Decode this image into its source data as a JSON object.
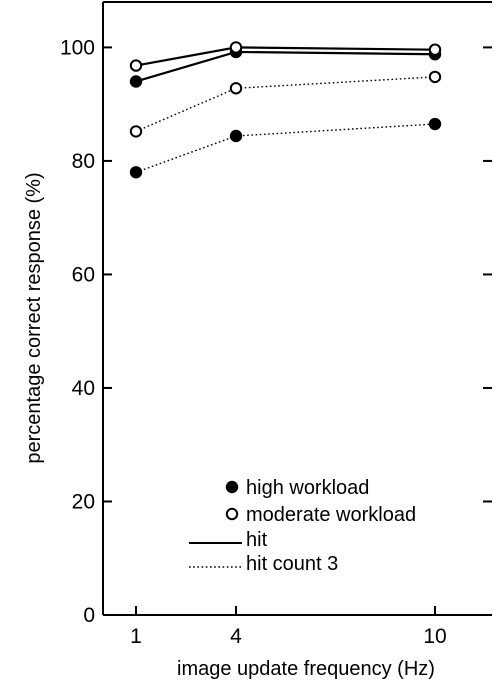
{
  "chart_data": {
    "type": "line",
    "title": "",
    "xlabel": "image update frequency (Hz)",
    "ylabel": "percentage correct response (%)",
    "x_categories": [
      "1",
      "4",
      "10"
    ],
    "ylim": [
      0,
      108
    ],
    "yticks": [
      0,
      20,
      40,
      60,
      80,
      100
    ],
    "yticklabels": [
      "0",
      "20",
      "40",
      "60",
      "80",
      "100"
    ],
    "grid": false,
    "legend_position": "bottom-right",
    "legend": {
      "markers": [
        {
          "label": "high workload",
          "marker": "filled-circle"
        },
        {
          "label": "moderate workload",
          "marker": "open-circle"
        }
      ],
      "lines": [
        {
          "label": "hit",
          "style": "solid"
        },
        {
          "label": "hit count 3",
          "style": "dotted"
        }
      ]
    },
    "series": [
      {
        "workload": "high",
        "measure": "hit",
        "marker": "filled-circle",
        "line": "solid",
        "values": [
          94,
          99.2,
          98.8
        ]
      },
      {
        "workload": "moderate",
        "measure": "hit",
        "marker": "open-circle",
        "line": "solid",
        "values": [
          96.8,
          100,
          99.6
        ]
      },
      {
        "workload": "moderate",
        "measure": "hit count 3",
        "marker": "open-circle",
        "line": "dotted",
        "values": [
          85.2,
          92.8,
          94.8
        ]
      },
      {
        "workload": "high",
        "measure": "hit count 3",
        "marker": "filled-circle",
        "line": "dotted",
        "values": [
          78,
          84.4,
          86.5
        ]
      }
    ]
  }
}
